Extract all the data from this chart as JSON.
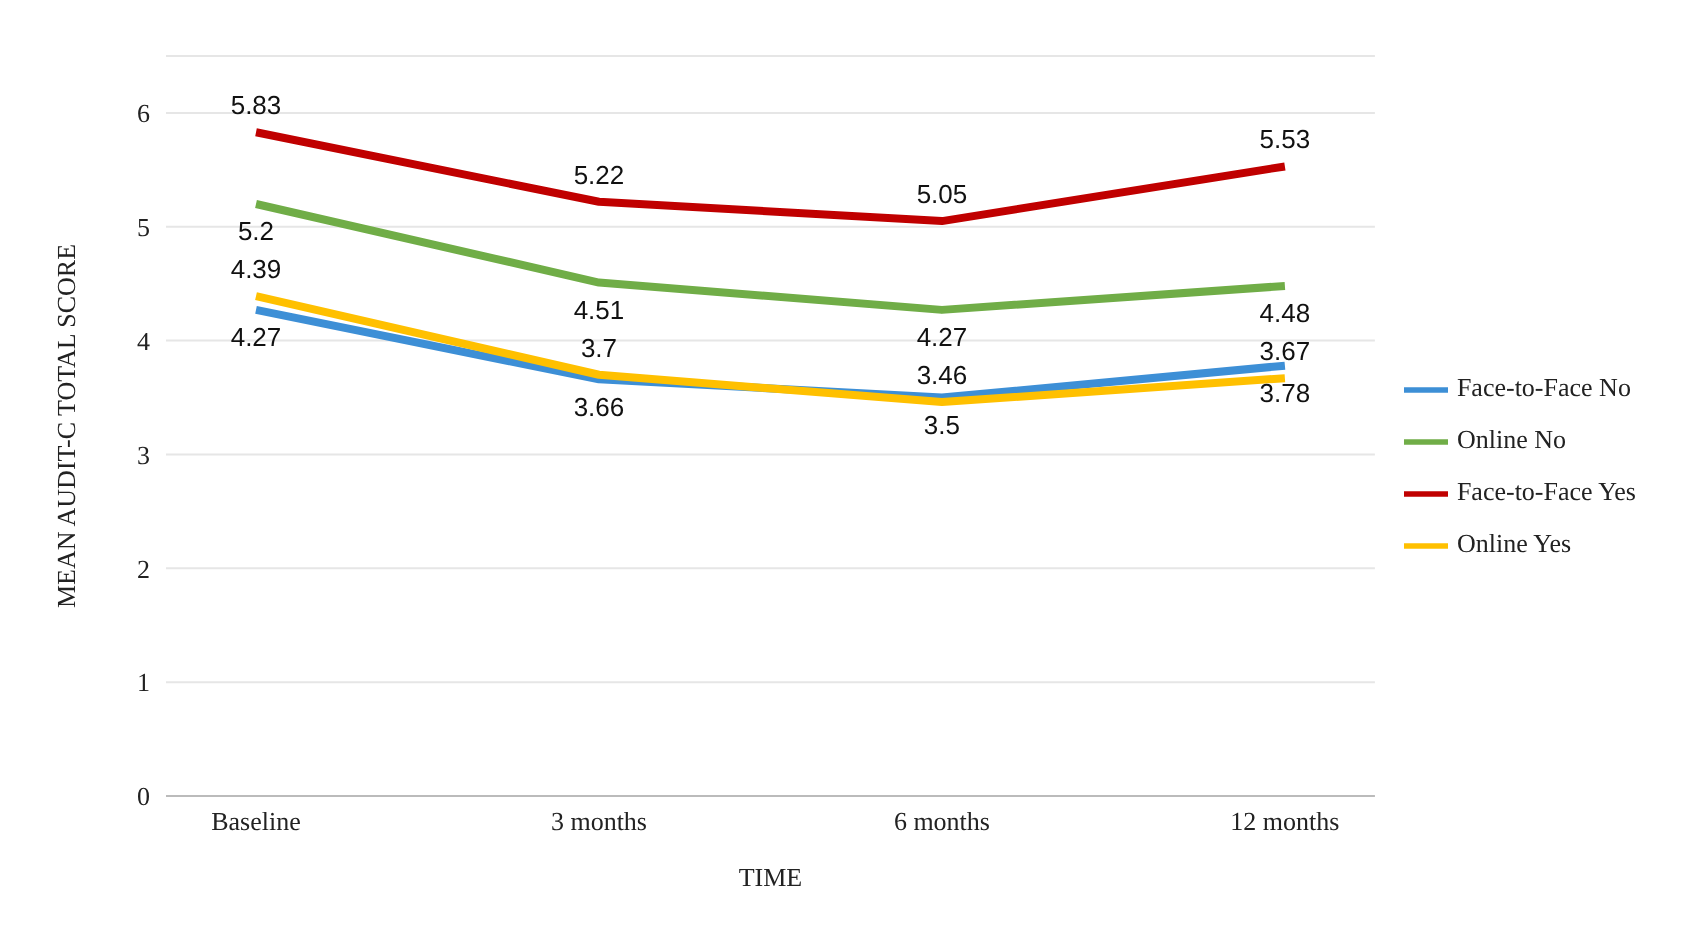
{
  "chart_data": {
    "type": "line",
    "xlabel": "TIME",
    "ylabel": "MEAN AUDIT-C TOTAL SCORE",
    "categories": [
      "Baseline",
      "3 months",
      "6 months",
      "12 months"
    ],
    "series": [
      {
        "name": "Face-to-Face No",
        "color": "#3d8fd6",
        "values": [
          4.27,
          3.66,
          3.5,
          3.78
        ]
      },
      {
        "name": "Online No",
        "color": "#70ad47",
        "values": [
          5.2,
          4.51,
          4.27,
          4.48
        ]
      },
      {
        "name": "Face-to-Face Yes",
        "color": "#c00000",
        "values": [
          5.83,
          5.22,
          5.05,
          5.53
        ]
      },
      {
        "name": "Online Yes",
        "color": "#ffc000",
        "values": [
          4.39,
          3.7,
          3.46,
          3.67
        ]
      }
    ],
    "ylim": [
      0,
      6.5
    ],
    "yticks": [
      0,
      1,
      2,
      3,
      4,
      5,
      6
    ],
    "grid": "y",
    "legend": "right",
    "data_labels": true,
    "marker": "none",
    "line_style": "solid"
  }
}
